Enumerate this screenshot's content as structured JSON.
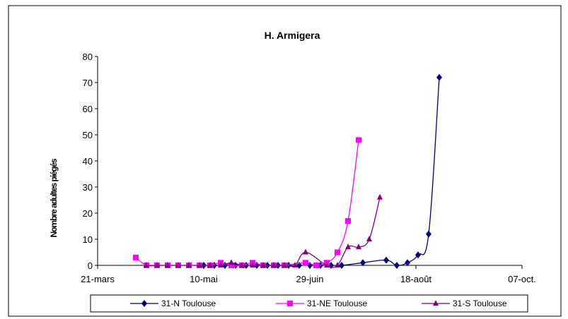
{
  "chart_data": {
    "type": "line",
    "title": "H. Armigera",
    "ylabel": "Nombre adultes piégés",
    "xlabel": "",
    "x_tick_labels": [
      "21-mars",
      "10-mai",
      "29-juin",
      "18-août",
      "07-oct."
    ],
    "x_tick_days": [
      80,
      130,
      180,
      230,
      280
    ],
    "xlim_days": [
      80,
      280
    ],
    "y_ticks": [
      0,
      10,
      20,
      30,
      40,
      50,
      60,
      70,
      80
    ],
    "ylim": [
      0,
      80
    ],
    "grid": false,
    "legend_position": "bottom",
    "series": [
      {
        "name": "31-N Toulouse",
        "color": "#000080",
        "marker": "diamond",
        "points": [
          {
            "day": 130,
            "y": 0
          },
          {
            "day": 135,
            "y": 0
          },
          {
            "day": 140,
            "y": 0
          },
          {
            "day": 145,
            "y": 0
          },
          {
            "day": 150,
            "y": 0
          },
          {
            "day": 155,
            "y": 0
          },
          {
            "day": 160,
            "y": 0
          },
          {
            "day": 165,
            "y": 0
          },
          {
            "day": 170,
            "y": 0
          },
          {
            "day": 175,
            "y": 0
          },
          {
            "day": 180,
            "y": 0
          },
          {
            "day": 185,
            "y": 0
          },
          {
            "day": 190,
            "y": 0
          },
          {
            "day": 195,
            "y": 0
          },
          {
            "day": 205,
            "y": 1
          },
          {
            "day": 216,
            "y": 2
          },
          {
            "day": 221,
            "y": 0
          },
          {
            "day": 226,
            "y": 1
          },
          {
            "day": 231,
            "y": 4
          },
          {
            "day": 236,
            "y": 12
          },
          {
            "day": 241,
            "y": 72
          }
        ]
      },
      {
        "name": "31-NE Toulouse",
        "color": "#ff00ff",
        "marker": "square",
        "points": [
          {
            "day": 98,
            "y": 3
          },
          {
            "day": 103,
            "y": 0
          },
          {
            "day": 108,
            "y": 0
          },
          {
            "day": 113,
            "y": 0
          },
          {
            "day": 118,
            "y": 0
          },
          {
            "day": 123,
            "y": 0
          },
          {
            "day": 128,
            "y": 0
          },
          {
            "day": 133,
            "y": 0
          },
          {
            "day": 138,
            "y": 1
          },
          {
            "day": 143,
            "y": 0
          },
          {
            "day": 148,
            "y": 0
          },
          {
            "day": 153,
            "y": 1
          },
          {
            "day": 158,
            "y": 0
          },
          {
            "day": 163,
            "y": 0
          },
          {
            "day": 168,
            "y": 0
          },
          {
            "day": 178,
            "y": 1
          },
          {
            "day": 183,
            "y": 0
          },
          {
            "day": 188,
            "y": 1
          },
          {
            "day": 193,
            "y": 5
          },
          {
            "day": 198,
            "y": 17
          },
          {
            "day": 203,
            "y": 48
          }
        ]
      },
      {
        "name": "31-S Toulouse",
        "color": "#800080",
        "marker": "triangle",
        "points": [
          {
            "day": 103,
            "y": 0
          },
          {
            "day": 108,
            "y": 0
          },
          {
            "day": 113,
            "y": 0
          },
          {
            "day": 118,
            "y": 0
          },
          {
            "day": 123,
            "y": 0
          },
          {
            "day": 128,
            "y": 0
          },
          {
            "day": 133,
            "y": 0
          },
          {
            "day": 138,
            "y": 0
          },
          {
            "day": 143,
            "y": 1
          },
          {
            "day": 148,
            "y": 0
          },
          {
            "day": 153,
            "y": 0
          },
          {
            "day": 158,
            "y": 0
          },
          {
            "day": 163,
            "y": 0
          },
          {
            "day": 168,
            "y": 0
          },
          {
            "day": 173,
            "y": 0
          },
          {
            "day": 178,
            "y": 5
          },
          {
            "day": 188,
            "y": 0
          },
          {
            "day": 193,
            "y": 0
          },
          {
            "day": 198,
            "y": 7
          },
          {
            "day": 203,
            "y": 7
          },
          {
            "day": 208,
            "y": 10
          },
          {
            "day": 213,
            "y": 26
          }
        ]
      }
    ]
  }
}
